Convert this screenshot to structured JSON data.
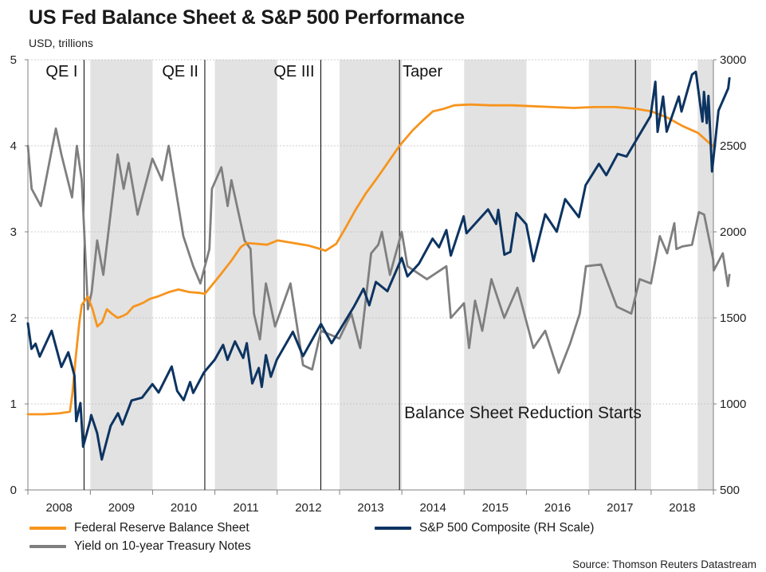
{
  "title": "US Fed Balance Sheet & S&P 500 Performance",
  "subtitle": "USD, trillions",
  "source": "Source: Thomson Reuters Datastream",
  "colors": {
    "balance_sheet": "#F7941D",
    "sp500": "#0D3461",
    "treasury": "#7F7F7F",
    "shade": "#E2E2E2",
    "gridline": "#BFBFBF"
  },
  "chart_data": {
    "type": "line",
    "x_range": [
      "2008-01-01",
      "2019-01-01"
    ],
    "x_tick_labels": [
      "2008",
      "2009",
      "2010",
      "2011",
      "2012",
      "2013",
      "2014",
      "2015",
      "2016",
      "2017",
      "2018"
    ],
    "y_left": {
      "range": [
        0,
        5
      ],
      "ticks": [
        "0",
        "1",
        "2",
        "3",
        "4",
        "5"
      ]
    },
    "y_right": {
      "range": [
        500,
        3000
      ],
      "ticks": [
        "500",
        "1000",
        "1500",
        "2000",
        "2500",
        "3000"
      ]
    },
    "gridlines": true,
    "shaded_years": [
      "2009",
      "2011",
      "2013",
      "2015",
      "2017",
      "2018-Q4"
    ],
    "event_lines": [
      {
        "label": "QE I",
        "date": "2008-11-25"
      },
      {
        "label": "QE II",
        "date": "2010-11-03"
      },
      {
        "label": "QE III",
        "date": "2012-09-13"
      },
      {
        "label": "Taper",
        "date": "2013-12-18"
      },
      {
        "label": "",
        "date": "2017-10-01"
      }
    ],
    "annotations": [
      {
        "text": "Balance Sheet Reduction Starts",
        "date": "2014-01-15",
        "value": 0.9
      }
    ],
    "series": [
      {
        "name": "Federal Reserve Balance Sheet",
        "axis": "left",
        "unit": "USD trillions",
        "points": [
          [
            "2008-01-01",
            0.88
          ],
          [
            "2008-04-01",
            0.88
          ],
          [
            "2008-07-01",
            0.89
          ],
          [
            "2008-09-03",
            0.91
          ],
          [
            "2008-09-17",
            1.1
          ],
          [
            "2008-09-24",
            1.25
          ],
          [
            "2008-10-08",
            1.55
          ],
          [
            "2008-10-29",
            1.95
          ],
          [
            "2008-11-12",
            2.15
          ],
          [
            "2008-12-17",
            2.25
          ],
          [
            "2009-01-14",
            2.1
          ],
          [
            "2009-02-11",
            1.9
          ],
          [
            "2009-03-11",
            1.95
          ],
          [
            "2009-04-08",
            2.1
          ],
          [
            "2009-05-06",
            2.05
          ],
          [
            "2009-06-10",
            2.0
          ],
          [
            "2009-07-08",
            2.02
          ],
          [
            "2009-08-05",
            2.05
          ],
          [
            "2009-09-09",
            2.13
          ],
          [
            "2009-10-07",
            2.15
          ],
          [
            "2009-11-11",
            2.18
          ],
          [
            "2009-12-16",
            2.22
          ],
          [
            "2010-02-03",
            2.25
          ],
          [
            "2010-04-07",
            2.3
          ],
          [
            "2010-06-02",
            2.33
          ],
          [
            "2010-08-04",
            2.3
          ],
          [
            "2010-10-06",
            2.29
          ],
          [
            "2010-11-03",
            2.28
          ],
          [
            "2010-12-15",
            2.38
          ],
          [
            "2011-02-02",
            2.5
          ],
          [
            "2011-04-06",
            2.66
          ],
          [
            "2011-06-01",
            2.82
          ],
          [
            "2011-07-06",
            2.87
          ],
          [
            "2011-09-07",
            2.86
          ],
          [
            "2011-11-02",
            2.85
          ],
          [
            "2012-01-04",
            2.9
          ],
          [
            "2012-04-04",
            2.87
          ],
          [
            "2012-07-04",
            2.84
          ],
          [
            "2012-09-12",
            2.8
          ],
          [
            "2012-10-10",
            2.78
          ],
          [
            "2012-12-12",
            2.86
          ],
          [
            "2013-02-06",
            3.05
          ],
          [
            "2013-04-03",
            3.25
          ],
          [
            "2013-06-05",
            3.45
          ],
          [
            "2013-08-07",
            3.62
          ],
          [
            "2013-10-02",
            3.78
          ],
          [
            "2013-12-18",
            4.0
          ],
          [
            "2014-03-05",
            4.18
          ],
          [
            "2014-05-07",
            4.3
          ],
          [
            "2014-07-02",
            4.4
          ],
          [
            "2014-09-03",
            4.43
          ],
          [
            "2014-11-05",
            4.47
          ],
          [
            "2015-02-04",
            4.48
          ],
          [
            "2015-06-03",
            4.47
          ],
          [
            "2015-10-07",
            4.47
          ],
          [
            "2016-02-03",
            4.46
          ],
          [
            "2016-06-01",
            4.45
          ],
          [
            "2016-10-05",
            4.44
          ],
          [
            "2017-02-01",
            4.45
          ],
          [
            "2017-06-07",
            4.45
          ],
          [
            "2017-10-04",
            4.43
          ],
          [
            "2018-01-03",
            4.4
          ],
          [
            "2018-04-04",
            4.33
          ],
          [
            "2018-07-04",
            4.23
          ],
          [
            "2018-10-03",
            4.15
          ],
          [
            "2018-12-26",
            4.0
          ]
        ]
      },
      {
        "name": "S&P 500 Composite (RH Scale)",
        "axis": "right",
        "unit": "index",
        "points": [
          [
            "2008-01-01",
            1468
          ],
          [
            "2008-01-22",
            1320
          ],
          [
            "2008-02-15",
            1350
          ],
          [
            "2008-03-10",
            1275
          ],
          [
            "2008-05-19",
            1425
          ],
          [
            "2008-07-15",
            1215
          ],
          [
            "2008-08-25",
            1300
          ],
          [
            "2008-09-30",
            1165
          ],
          [
            "2008-10-10",
            900
          ],
          [
            "2008-11-04",
            1005
          ],
          [
            "2008-11-20",
            752
          ],
          [
            "2008-12-31",
            903
          ],
          [
            "2009-01-06",
            935
          ],
          [
            "2009-02-10",
            830
          ],
          [
            "2009-03-09",
            677
          ],
          [
            "2009-04-30",
            872
          ],
          [
            "2009-06-12",
            946
          ],
          [
            "2009-07-08",
            880
          ],
          [
            "2009-08-31",
            1020
          ],
          [
            "2009-10-31",
            1036
          ],
          [
            "2009-12-31",
            1115
          ],
          [
            "2010-02-05",
            1066
          ],
          [
            "2010-04-23",
            1217
          ],
          [
            "2010-05-25",
            1075
          ],
          [
            "2010-07-02",
            1022
          ],
          [
            "2010-08-09",
            1127
          ],
          [
            "2010-08-27",
            1064
          ],
          [
            "2010-10-29",
            1183
          ],
          [
            "2010-12-31",
            1257
          ],
          [
            "2011-02-18",
            1343
          ],
          [
            "2011-03-16",
            1256
          ],
          [
            "2011-04-29",
            1363
          ],
          [
            "2011-06-16",
            1267
          ],
          [
            "2011-07-07",
            1353
          ],
          [
            "2011-08-08",
            1119
          ],
          [
            "2011-09-15",
            1209
          ],
          [
            "2011-10-03",
            1099
          ],
          [
            "2011-10-27",
            1284
          ],
          [
            "2011-11-25",
            1158
          ],
          [
            "2011-12-30",
            1257
          ],
          [
            "2012-04-02",
            1419
          ],
          [
            "2012-06-01",
            1278
          ],
          [
            "2012-09-14",
            1465
          ],
          [
            "2012-11-15",
            1353
          ],
          [
            "2012-12-31",
            1426
          ],
          [
            "2013-03-28",
            1569
          ],
          [
            "2013-05-21",
            1669
          ],
          [
            "2013-06-24",
            1573
          ],
          [
            "2013-08-02",
            1709
          ],
          [
            "2013-10-08",
            1655
          ],
          [
            "2013-12-31",
            1848
          ],
          [
            "2014-02-03",
            1741
          ],
          [
            "2014-04-11",
            1815
          ],
          [
            "2014-06-30",
            1960
          ],
          [
            "2014-08-07",
            1910
          ],
          [
            "2014-09-19",
            2010
          ],
          [
            "2014-10-15",
            1862
          ],
          [
            "2014-12-29",
            2090
          ],
          [
            "2015-01-15",
            1992
          ],
          [
            "2015-05-21",
            2130
          ],
          [
            "2015-07-08",
            2046
          ],
          [
            "2015-07-20",
            2128
          ],
          [
            "2015-08-25",
            1867
          ],
          [
            "2015-09-29",
            1884
          ],
          [
            "2015-11-03",
            2109
          ],
          [
            "2015-12-31",
            2044
          ],
          [
            "2016-02-11",
            1829
          ],
          [
            "2016-04-20",
            2102
          ],
          [
            "2016-06-27",
            2001
          ],
          [
            "2016-08-15",
            2190
          ],
          [
            "2016-11-04",
            2085
          ],
          [
            "2016-12-13",
            2271
          ],
          [
            "2017-03-01",
            2395
          ],
          [
            "2017-04-13",
            2329
          ],
          [
            "2017-06-19",
            2453
          ],
          [
            "2017-08-10",
            2438
          ],
          [
            "2017-10-31",
            2575
          ],
          [
            "2017-12-29",
            2673
          ],
          [
            "2018-01-26",
            2872
          ],
          [
            "2018-02-08",
            2581
          ],
          [
            "2018-03-12",
            2786
          ],
          [
            "2018-04-02",
            2582
          ],
          [
            "2018-06-12",
            2786
          ],
          [
            "2018-06-28",
            2699
          ],
          [
            "2018-08-29",
            2914
          ],
          [
            "2018-09-20",
            2930
          ],
          [
            "2018-10-29",
            2641
          ],
          [
            "2018-11-07",
            2813
          ],
          [
            "2018-11-23",
            2632
          ],
          [
            "2018-12-03",
            2790
          ],
          [
            "2018-12-24",
            2351
          ],
          [
            "2019-01-31",
            2704
          ],
          [
            "2019-03-29",
            2834
          ],
          [
            "2019-04-05",
            2892
          ]
        ]
      },
      {
        "name": "Yield on 10-year Treasury Notes",
        "axis": "left",
        "unit": "percent",
        "points": [
          [
            "2008-01-01",
            4.0
          ],
          [
            "2008-01-23",
            3.5
          ],
          [
            "2008-03-17",
            3.3
          ],
          [
            "2008-06-13",
            4.2
          ],
          [
            "2008-07-15",
            3.9
          ],
          [
            "2008-09-16",
            3.4
          ],
          [
            "2008-10-14",
            4.0
          ],
          [
            "2008-11-12",
            3.6
          ],
          [
            "2008-12-18",
            2.1
          ],
          [
            "2009-01-09",
            2.3
          ],
          [
            "2009-02-10",
            2.9
          ],
          [
            "2009-03-18",
            2.5
          ],
          [
            "2009-06-10",
            3.9
          ],
          [
            "2009-07-15",
            3.5
          ],
          [
            "2009-08-14",
            3.8
          ],
          [
            "2009-10-05",
            3.2
          ],
          [
            "2009-12-31",
            3.85
          ],
          [
            "2010-02-25",
            3.6
          ],
          [
            "2010-04-05",
            4.0
          ],
          [
            "2010-06-30",
            2.95
          ],
          [
            "2010-08-27",
            2.6
          ],
          [
            "2010-10-08",
            2.4
          ],
          [
            "2010-11-30",
            2.8
          ],
          [
            "2010-12-15",
            3.5
          ],
          [
            "2011-02-08",
            3.75
          ],
          [
            "2011-03-17",
            3.3
          ],
          [
            "2011-04-08",
            3.6
          ],
          [
            "2011-06-24",
            2.9
          ],
          [
            "2011-07-29",
            2.8
          ],
          [
            "2011-08-18",
            2.05
          ],
          [
            "2011-09-22",
            1.75
          ],
          [
            "2011-10-27",
            2.4
          ],
          [
            "2011-12-20",
            1.9
          ],
          [
            "2012-03-19",
            2.4
          ],
          [
            "2012-06-01",
            1.45
          ],
          [
            "2012-07-24",
            1.4
          ],
          [
            "2012-09-14",
            1.85
          ],
          [
            "2012-12-31",
            1.76
          ],
          [
            "2013-03-11",
            2.05
          ],
          [
            "2013-05-02",
            1.65
          ],
          [
            "2013-07-05",
            2.75
          ],
          [
            "2013-08-16",
            2.85
          ],
          [
            "2013-09-06",
            3.0
          ],
          [
            "2013-10-23",
            2.5
          ],
          [
            "2013-12-31",
            3.0
          ],
          [
            "2014-02-03",
            2.6
          ],
          [
            "2014-05-28",
            2.45
          ],
          [
            "2014-09-19",
            2.6
          ],
          [
            "2014-10-15",
            2.0
          ],
          [
            "2014-12-31",
            2.17
          ],
          [
            "2015-01-30",
            1.65
          ],
          [
            "2015-03-06",
            2.2
          ],
          [
            "2015-04-17",
            1.85
          ],
          [
            "2015-06-10",
            2.45
          ],
          [
            "2015-08-24",
            2.0
          ],
          [
            "2015-11-09",
            2.35
          ],
          [
            "2016-02-11",
            1.65
          ],
          [
            "2016-04-20",
            1.85
          ],
          [
            "2016-07-08",
            1.36
          ],
          [
            "2016-09-13",
            1.7
          ],
          [
            "2016-11-09",
            2.05
          ],
          [
            "2016-12-15",
            2.6
          ],
          [
            "2017-03-13",
            2.62
          ],
          [
            "2017-06-14",
            2.13
          ],
          [
            "2017-09-07",
            2.05
          ],
          [
            "2017-10-26",
            2.45
          ],
          [
            "2017-12-31",
            2.4
          ],
          [
            "2018-02-21",
            2.95
          ],
          [
            "2018-04-05",
            2.75
          ],
          [
            "2018-05-17",
            3.1
          ],
          [
            "2018-05-29",
            2.8
          ],
          [
            "2018-07-03",
            2.83
          ],
          [
            "2018-08-29",
            2.85
          ],
          [
            "2018-10-08",
            3.23
          ],
          [
            "2018-11-08",
            3.2
          ],
          [
            "2018-12-31",
            2.68
          ],
          [
            "2019-01-03",
            2.55
          ],
          [
            "2019-02-25",
            2.75
          ],
          [
            "2019-03-27",
            2.37
          ],
          [
            "2019-04-05",
            2.5
          ]
        ]
      }
    ]
  }
}
